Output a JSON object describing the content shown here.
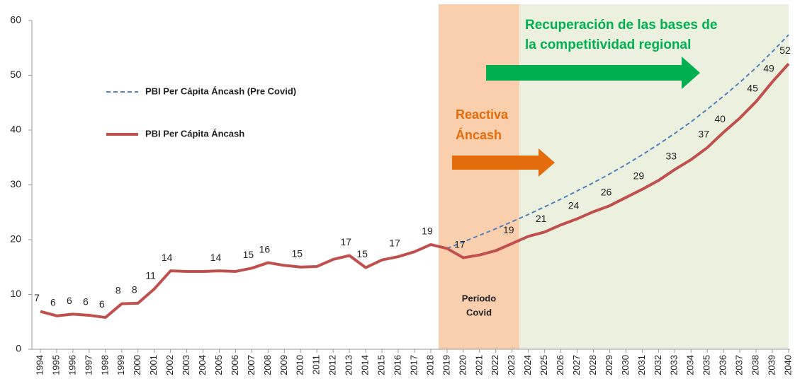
{
  "chart_data": {
    "type": "line",
    "categories": [
      "1994",
      "1995",
      "1996",
      "1997",
      "1998",
      "1999",
      "2000",
      "2001",
      "2002",
      "2003",
      "2004",
      "2005",
      "2006",
      "2007",
      "2008",
      "2009",
      "2010",
      "2011",
      "2012",
      "2013",
      "2014",
      "2015",
      "2016",
      "2017",
      "2018",
      "2019",
      "2020",
      "2021",
      "2022",
      "2023",
      "2024",
      "2025",
      "2026",
      "2027",
      "2028",
      "2029",
      "2030",
      "2031",
      "2032",
      "2033",
      "2034",
      "2035",
      "2036",
      "2037",
      "2038",
      "2039",
      "2040"
    ],
    "series": [
      {
        "name": "PBI Per Cápita Áncash (Pre Covid)",
        "color": "#4f81bd",
        "dashed": true,
        "values": [
          null,
          null,
          null,
          null,
          null,
          null,
          null,
          null,
          null,
          null,
          null,
          null,
          null,
          null,
          null,
          null,
          null,
          null,
          null,
          null,
          null,
          null,
          null,
          null,
          null,
          18.4,
          19.6,
          20.8,
          22,
          23.3,
          24.6,
          26,
          27.4,
          28.9,
          30.4,
          32,
          33.7,
          35.5,
          37.4,
          39.4,
          41.5,
          43.8,
          46.2,
          48.7,
          51.4,
          54.3,
          57.4
        ]
      },
      {
        "name": "PBI Per Cápita Áncash",
        "color": "#c0504d",
        "dashed": false,
        "values": [
          6.9,
          6.1,
          6.4,
          6.2,
          5.8,
          8.3,
          8.4,
          11,
          14.3,
          14.2,
          14.2,
          14.3,
          14.2,
          14.8,
          15.8,
          15.3,
          15,
          15.1,
          16.4,
          17.1,
          14.9,
          16.3,
          16.9,
          17.8,
          19.1,
          18.4,
          16.7,
          17.2,
          18,
          19.3,
          20.6,
          21.4,
          22.7,
          23.8,
          25.1,
          26.2,
          27.7,
          29.2,
          30.8,
          32.8,
          34.6,
          36.8,
          39.6,
          42.2,
          45.2,
          48.8,
          52.1
        ],
        "value_labels": [
          "7",
          "6",
          "6",
          "6",
          "6",
          "8",
          "8",
          "11",
          "14",
          null,
          null,
          "14",
          null,
          "15",
          "16",
          null,
          "15",
          null,
          null,
          "17",
          "15",
          null,
          "17",
          null,
          "19",
          null,
          "17",
          null,
          null,
          "19",
          null,
          "21",
          null,
          "24",
          null,
          "26",
          null,
          "29",
          null,
          "33",
          null,
          "37",
          "40",
          null,
          "45",
          "49",
          "52"
        ]
      }
    ],
    "ylim": [
      0,
      60
    ],
    "yticks": [
      0,
      10,
      20,
      30,
      40,
      50,
      60
    ],
    "annotations": [
      "Recuperación de las bases de",
      "la competitividad regional",
      "Reactiva",
      "Áncash",
      "Período",
      "Covid"
    ]
  }
}
